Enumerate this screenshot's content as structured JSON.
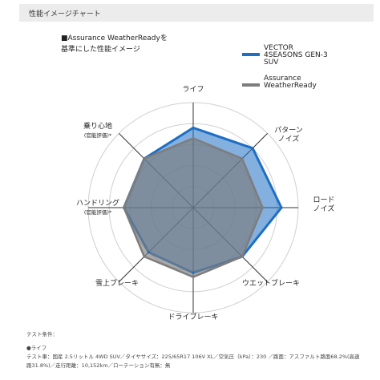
{
  "header": {
    "title": "性能イメージチャート"
  },
  "subtitle": {
    "line1": "■Assurance WeatherReadyを",
    "line2": "基準にした性能イメージ"
  },
  "colors": {
    "series1": "#1e6fc4",
    "series2": "#7d7d7d",
    "fill": "#7f8fae",
    "grid": "#cfcfcf",
    "axis": "#333333"
  },
  "chart_data": {
    "type": "radar",
    "axes": [
      {
        "label": "ライフ",
        "sub": ""
      },
      {
        "label": "パターン\nノイズ",
        "sub": ""
      },
      {
        "label": "ロード\nノイズ",
        "sub": ""
      },
      {
        "label": "ウエットブレーキ",
        "sub": ""
      },
      {
        "label": "ドライブレーキ",
        "sub": ""
      },
      {
        "label": "雪上ブレーキ",
        "sub": ""
      },
      {
        "label": "ハンドリング",
        "sub": "(官能評価)*"
      },
      {
        "label": "乗り心地",
        "sub": "(官能評価)*"
      }
    ],
    "rmax": 5,
    "rings": 5,
    "series": [
      {
        "name": "VECTOR\n4SEASONS GEN-3\nSUV",
        "values": [
          3.8,
          4.0,
          4.2,
          3.3,
          3.1,
          3.0,
          3.3,
          3.3
        ]
      },
      {
        "name": "Assurance\nWeatherReady",
        "values": [
          3.3,
          3.3,
          3.3,
          3.3,
          3.3,
          3.3,
          3.3,
          3.3
        ]
      }
    ]
  },
  "conditions": {
    "title": "テスト条件：",
    "item": "●ライフ",
    "line1": "テスト車：国産 2.5リットル 4WD SUV／タイヤサイズ：225/65R17 106V XL／空気圧（kPa）：230 ／路面：アスファルト路面68.2%(高速",
    "line2": "路31.8%)／走行距離：10,152km／ローテーション有無：無"
  }
}
